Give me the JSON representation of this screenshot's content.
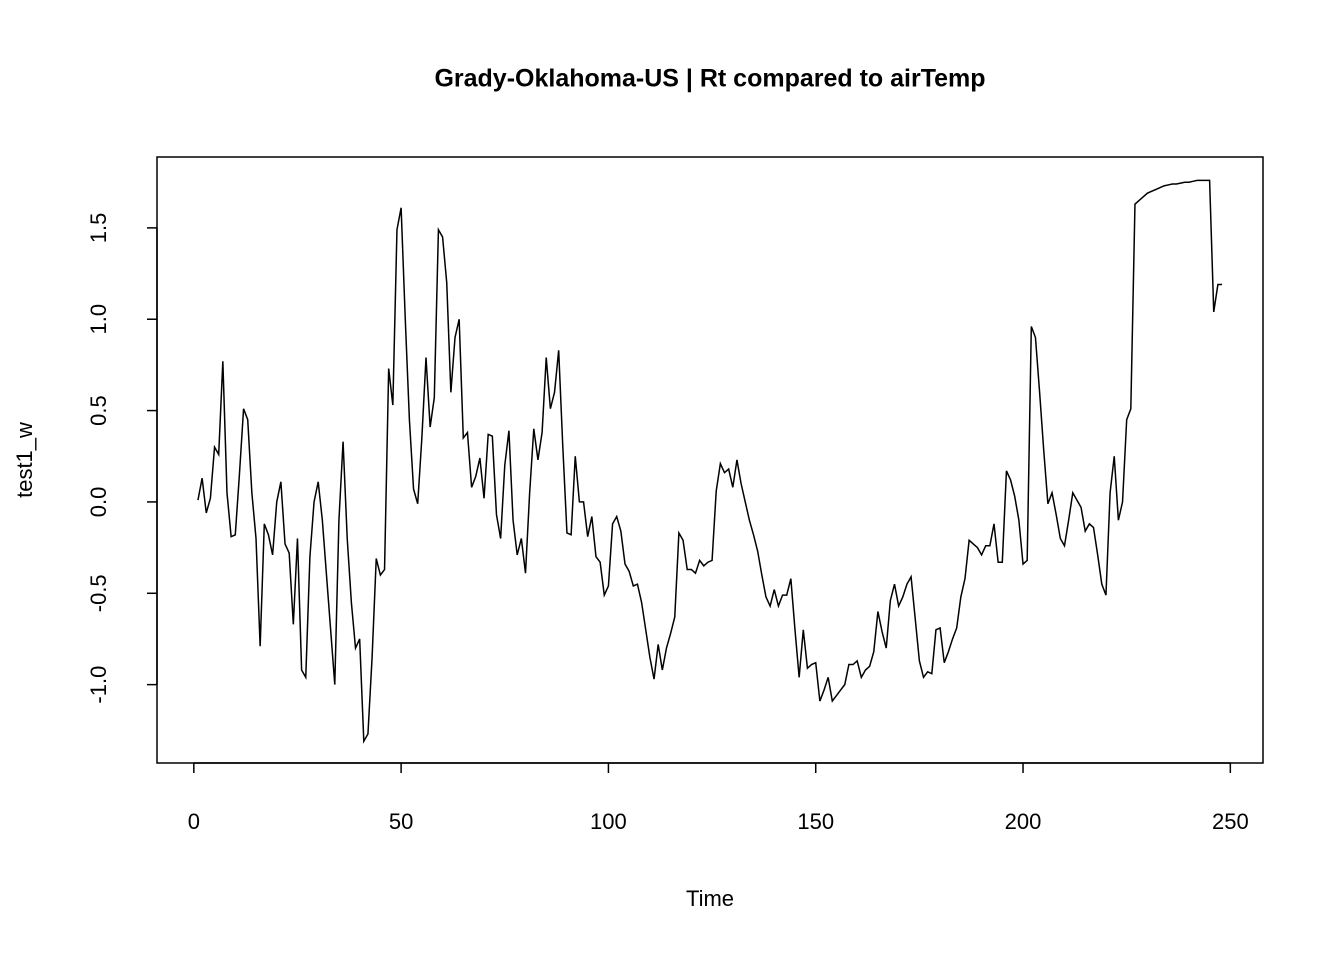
{
  "chart_data": {
    "type": "line",
    "title": "Grady-Oklahoma-US | Rt compared to airTemp",
    "x_label": "Time",
    "y_label": "test1_w",
    "color": "#000000",
    "x": [
      1,
      2,
      3,
      4,
      5,
      6,
      7,
      8,
      9,
      10,
      11,
      12,
      13,
      14,
      15,
      16,
      17,
      18,
      19,
      20,
      21,
      22,
      23,
      24,
      25,
      26,
      27,
      28,
      29,
      30,
      31,
      32,
      33,
      34,
      35,
      36,
      37,
      38,
      39,
      40,
      41,
      42,
      43,
      44,
      45,
      46,
      47,
      48,
      49,
      50,
      51,
      52,
      53,
      54,
      55,
      56,
      57,
      58,
      59,
      60,
      61,
      62,
      63,
      64,
      65,
      66,
      67,
      68,
      69,
      70,
      71,
      72,
      73,
      74,
      75,
      76,
      77,
      78,
      79,
      80,
      81,
      82,
      83,
      84,
      85,
      86,
      87,
      88,
      89,
      90,
      91,
      92,
      93,
      94,
      95,
      96,
      97,
      98,
      99,
      100,
      101,
      102,
      103,
      104,
      105,
      106,
      107,
      108,
      109,
      110,
      111,
      112,
      113,
      114,
      115,
      116,
      117,
      118,
      119,
      120,
      121,
      122,
      123,
      124,
      125,
      126,
      127,
      128,
      129,
      130,
      131,
      132,
      133,
      134,
      135,
      136,
      137,
      138,
      139,
      140,
      141,
      142,
      143,
      144,
      145,
      146,
      147,
      148,
      149,
      150,
      151,
      152,
      153,
      154,
      155,
      156,
      157,
      158,
      159,
      160,
      161,
      162,
      163,
      164,
      165,
      166,
      167,
      168,
      169,
      170,
      171,
      172,
      173,
      174,
      175,
      176,
      177,
      178,
      179,
      180,
      181,
      182,
      183,
      184,
      185,
      186,
      187,
      188,
      189,
      190,
      191,
      192,
      193,
      194,
      195,
      196,
      197,
      198,
      199,
      200,
      201,
      202,
      203,
      204,
      205,
      206,
      207,
      208,
      209,
      210,
      211,
      212,
      213,
      214,
      215,
      216,
      217,
      218,
      219,
      220,
      221,
      222,
      223,
      224,
      225,
      226,
      227,
      228,
      229,
      230,
      231,
      232,
      233,
      234,
      235,
      236,
      237,
      238,
      239,
      240,
      241,
      242,
      243,
      244,
      245,
      246,
      247,
      248
    ],
    "values": [
      0.01,
      0.13,
      -0.06,
      0.02,
      0.3,
      0.26,
      0.77,
      0.05,
      -0.19,
      -0.18,
      0.15,
      0.51,
      0.45,
      0.05,
      -0.2,
      -0.79,
      -0.12,
      -0.18,
      -0.29,
      0.0,
      0.11,
      -0.23,
      -0.28,
      -0.67,
      -0.2,
      -0.92,
      -0.96,
      -0.3,
      0.0,
      0.11,
      -0.1,
      -0.4,
      -0.7,
      -1.0,
      -0.1,
      0.33,
      -0.2,
      -0.55,
      -0.8,
      -0.75,
      -1.31,
      -1.27,
      -0.85,
      -0.31,
      -0.4,
      -0.37,
      0.73,
      0.53,
      1.49,
      1.61,
      1.0,
      0.45,
      0.07,
      -0.01,
      0.35,
      0.79,
      0.41,
      0.57,
      1.49,
      1.45,
      1.2,
      0.6,
      0.9,
      1.0,
      0.35,
      0.38,
      0.08,
      0.14,
      0.24,
      0.02,
      0.37,
      0.36,
      -0.07,
      -0.2,
      0.2,
      0.39,
      -0.1,
      -0.29,
      -0.2,
      -0.39,
      0.05,
      0.4,
      0.23,
      0.38,
      0.79,
      0.51,
      0.6,
      0.83,
      0.3,
      -0.17,
      -0.18,
      0.25,
      0.0,
      0.0,
      -0.19,
      -0.08,
      -0.3,
      -0.33,
      -0.51,
      -0.46,
      -0.12,
      -0.08,
      -0.16,
      -0.34,
      -0.38,
      -0.46,
      -0.45,
      -0.55,
      -0.7,
      -0.85,
      -0.97,
      -0.78,
      -0.92,
      -0.8,
      -0.72,
      -0.63,
      -0.17,
      -0.21,
      -0.37,
      -0.37,
      -0.39,
      -0.32,
      -0.35,
      -0.33,
      -0.32,
      0.06,
      0.21,
      0.16,
      0.18,
      0.08,
      0.23,
      0.1,
      0.0,
      -0.1,
      -0.18,
      -0.27,
      -0.4,
      -0.52,
      -0.57,
      -0.48,
      -0.57,
      -0.51,
      -0.51,
      -0.42,
      -0.7,
      -0.96,
      -0.7,
      -0.91,
      -0.89,
      -0.88,
      -1.09,
      -1.03,
      -0.96,
      -1.09,
      -1.06,
      -1.03,
      -1.0,
      -0.89,
      -0.89,
      -0.87,
      -0.96,
      -0.92,
      -0.9,
      -0.82,
      -0.6,
      -0.71,
      -0.8,
      -0.54,
      -0.45,
      -0.57,
      -0.52,
      -0.45,
      -0.41,
      -0.64,
      -0.87,
      -0.96,
      -0.93,
      -0.94,
      -0.7,
      -0.69,
      -0.88,
      -0.82,
      -0.75,
      -0.69,
      -0.52,
      -0.42,
      -0.21,
      -0.23,
      -0.25,
      -0.29,
      -0.24,
      -0.24,
      -0.12,
      -0.33,
      -0.33,
      0.17,
      0.12,
      0.03,
      -0.1,
      -0.34,
      -0.32,
      0.96,
      0.9,
      0.6,
      0.28,
      -0.01,
      0.05,
      -0.07,
      -0.2,
      -0.24,
      -0.1,
      0.05,
      0.01,
      -0.03,
      -0.16,
      -0.12,
      -0.14,
      -0.29,
      -0.45,
      -0.51,
      0.05,
      0.25,
      -0.1,
      0.0,
      0.45,
      0.51,
      1.63,
      1.65,
      1.67,
      1.69,
      1.7,
      1.71,
      1.72,
      1.73,
      1.735,
      1.74,
      1.74,
      1.745,
      1.75,
      1.75,
      1.755,
      1.76,
      1.76,
      1.76,
      1.76,
      1.04,
      1.19,
      1.19
    ],
    "xlim": [
      -8.88,
      257.88
    ],
    "ylim": [
      -1.429,
      1.888
    ],
    "xticks": [
      0,
      50,
      100,
      150,
      200,
      250
    ],
    "yticks": [
      {
        "value": -1.0,
        "label": "-1.0"
      },
      -0.5,
      {
        "value": 0.0,
        "label": "0.0"
      },
      0.5,
      {
        "value": 1.0,
        "label": "1.0"
      },
      1.5
    ]
  }
}
